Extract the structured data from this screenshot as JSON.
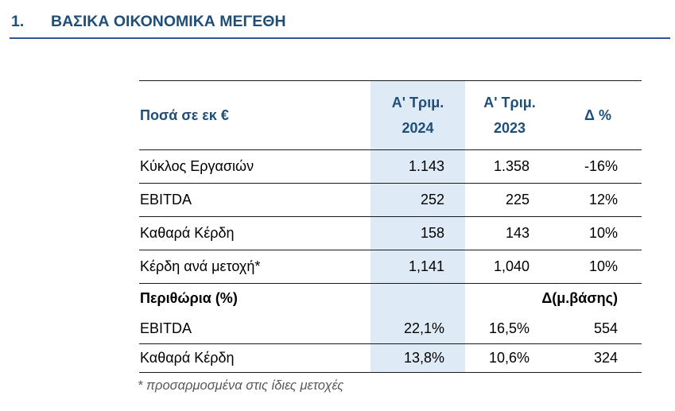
{
  "document": {
    "section_number": "1.",
    "title": "ΒΑΣΙΚΑ ΟΙΚΟΝΟΜΙΚΑ ΜΕΓΕΘΗ",
    "footnote": "* προσαρμοσμένα στις ίδιες μετοχές"
  },
  "colors": {
    "title_blue": "#1F4E79",
    "rule_blue": "#2F5496",
    "highlight_blue": "#DEEAF6",
    "border_dark": "#1a1a1a",
    "footnote_gray": "#595959"
  },
  "table": {
    "units_label": "Ποσά σε εκ €",
    "columns": {
      "c2024": {
        "line1": "Α' Τριμ.",
        "line2": "2024"
      },
      "c2023": {
        "line1": "Α' Τριμ.",
        "line2": "2023"
      },
      "delta_label": "Δ %"
    },
    "rows": [
      {
        "label": "Κύκλος Εργασιών",
        "q2024": "1.143",
        "q2023": "1.358",
        "delta": "-16%"
      },
      {
        "label": "EBITDA",
        "q2024": "252",
        "q2023": "225",
        "delta": "12%"
      },
      {
        "label": "Καθαρά Κέρδη",
        "q2024": "158",
        "q2023": "143",
        "delta": "10%"
      },
      {
        "label": "Κέρδη ανά μετοχή*",
        "q2024": "1,141",
        "q2023": "1,040",
        "delta": "10%"
      },
      {
        "label": "Περιθώρια (%)",
        "q2024": "",
        "q2023": "",
        "delta": "Δ(μ.βάσης)"
      },
      {
        "label": "EBITDA",
        "q2024": "22,1%",
        "q2023": "16,5%",
        "delta": "554"
      },
      {
        "label": "Καθαρά Κέρδη",
        "q2024": "13,8%",
        "q2023": "10,6%",
        "delta": "324"
      }
    ]
  }
}
